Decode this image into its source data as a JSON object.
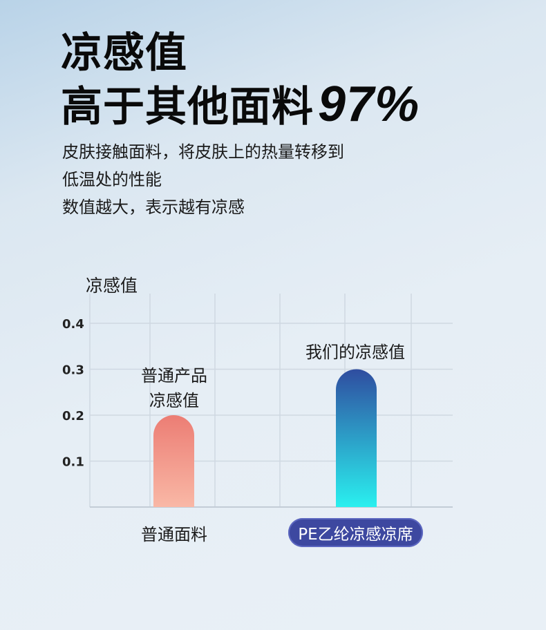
{
  "headline": {
    "line1": "凉感值",
    "line2": "高于其他面料",
    "highlight": "97%"
  },
  "description": [
    "皮肤接触面料，将皮肤上的热量转移到",
    "低温处的性能",
    "数值越大，表示越有凉感"
  ],
  "chart_data": {
    "type": "bar",
    "ylabel": "凉感值",
    "ylim": [
      0,
      0.4
    ],
    "yticks": [
      "0.1",
      "0.2",
      "0.3",
      "0.4"
    ],
    "categories": [
      "普通面料",
      "PE乙纶凉感凉席"
    ],
    "values": [
      0.2,
      0.3
    ],
    "annotations": [
      "普通产品\n凉感值",
      "我们的凉感值"
    ],
    "grid": true,
    "colors": {
      "bar1_top": "#ec7d74",
      "bar1_bottom": "#f9b8a6",
      "bar2_top": "#2f4da0",
      "bar2_bottom": "#2af0ef",
      "highlight_label_bg": "#3d48a0"
    }
  }
}
